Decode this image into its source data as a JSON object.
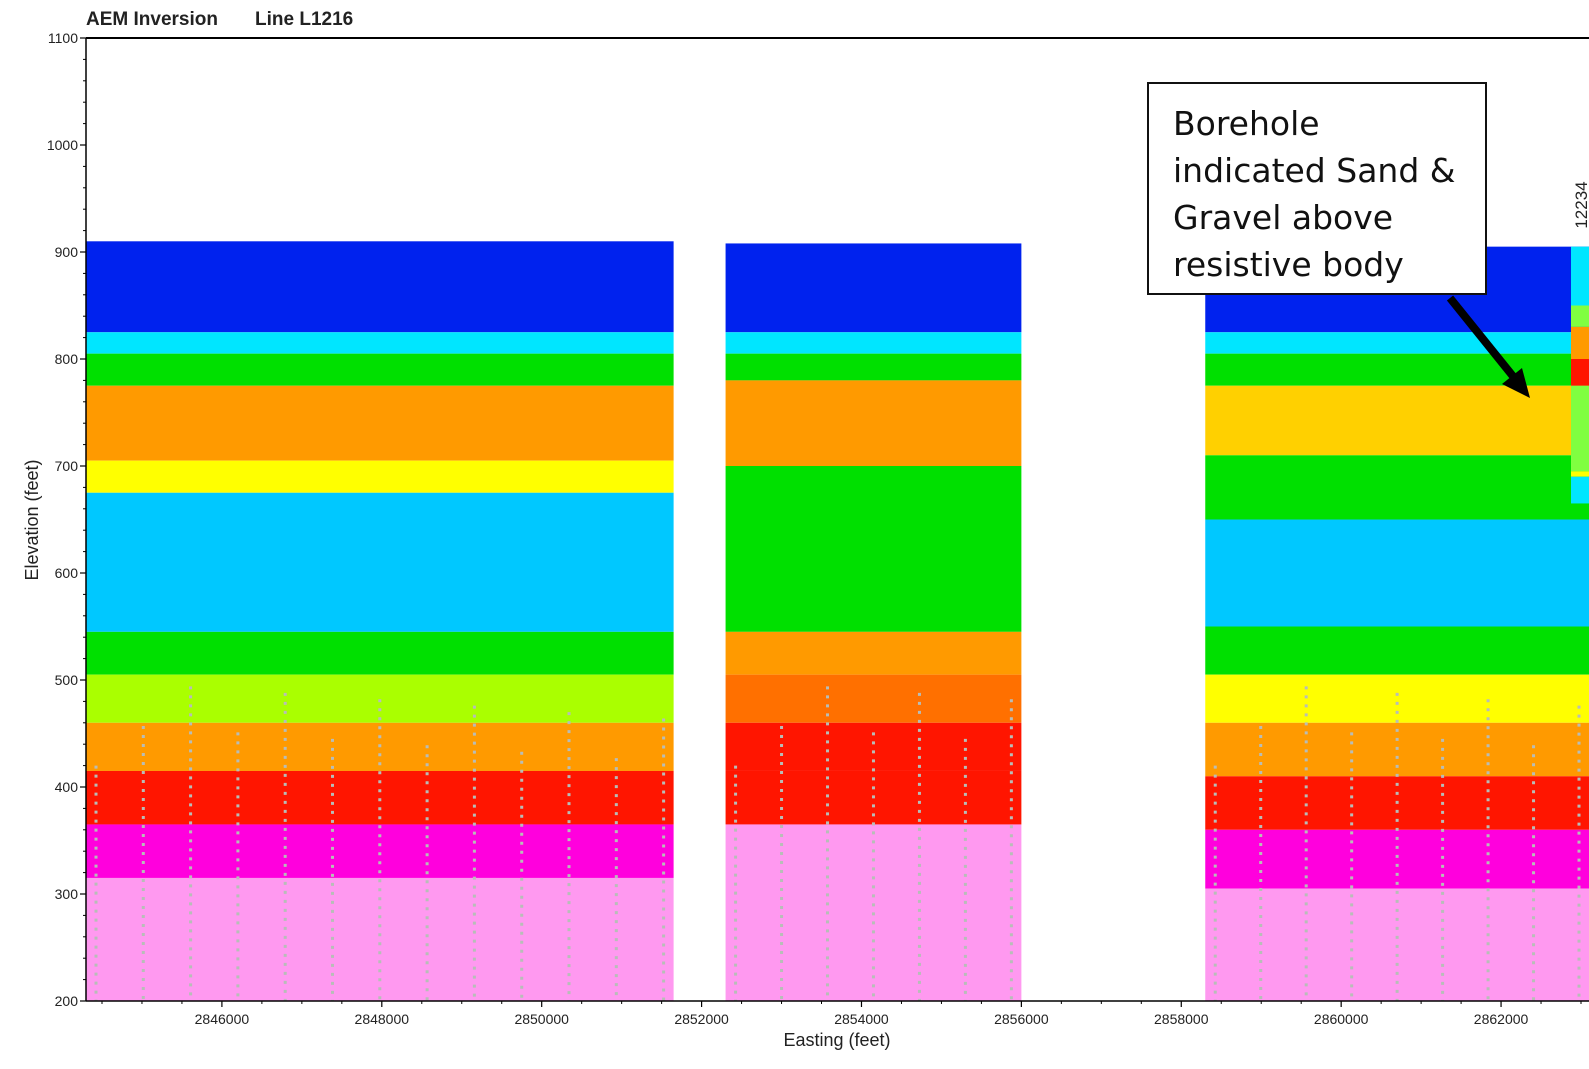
{
  "chart_data": {
    "type": "heatmap",
    "title": "AEM Inversion",
    "subtitle": "Line L1216",
    "xlabel": "Easting (feet)",
    "ylabel": "Elevation (feet)",
    "xlim": [
      2844300,
      2863100
    ],
    "ylim": [
      200,
      1100
    ],
    "x_ticks": [
      2846000,
      2848000,
      2850000,
      2852000,
      2854000,
      2856000,
      2858000,
      2860000,
      2862000
    ],
    "y_ticks": [
      200,
      300,
      400,
      500,
      600,
      700,
      800,
      900,
      1000,
      1100
    ],
    "x_tick_labels": [
      "2846000",
      "2848000",
      "2850000",
      "2852000",
      "2854000",
      "2856000",
      "2858000",
      "2860000",
      "2862000"
    ],
    "y_tick_labels": [
      "200",
      "300",
      "400",
      "500",
      "600",
      "700",
      "800",
      "900",
      "1000",
      "1100"
    ],
    "grid": false,
    "colors": {
      "very_low": "#0022ee",
      "low": "#00e6ff",
      "mid": "#00e000",
      "mid_high": "#ffff00",
      "high": "#ff9a00",
      "very_high": "#ff1500",
      "max": "#ff00dd",
      "saturated": "#ff99f0",
      "depth_of_investigation": "#b8bdb8"
    },
    "segments": [
      {
        "x_start": 2844300,
        "x_end": 2851650,
        "top": 910,
        "layers": [
          {
            "top": 910,
            "bottom": 825,
            "color": "#0022ee"
          },
          {
            "top": 825,
            "bottom": 805,
            "color": "#00e6ff"
          },
          {
            "top": 805,
            "bottom": 775,
            "color": "#00e000"
          },
          {
            "top": 775,
            "bottom": 705,
            "color": "#ff9a00"
          },
          {
            "top": 705,
            "bottom": 675,
            "color": "#ffff00"
          },
          {
            "top": 675,
            "bottom": 545,
            "color": "#00c8ff"
          },
          {
            "top": 545,
            "bottom": 505,
            "color": "#00e000"
          },
          {
            "top": 505,
            "bottom": 460,
            "color": "#aaff00"
          },
          {
            "top": 460,
            "bottom": 415,
            "color": "#ff9a00"
          },
          {
            "top": 415,
            "bottom": 365,
            "color": "#ff1500"
          },
          {
            "top": 365,
            "bottom": 315,
            "color": "#ff00dd"
          },
          {
            "top": 315,
            "bottom": 200,
            "color": "#ff99f0"
          }
        ]
      },
      {
        "x_start": 2852300,
        "x_end": 2856000,
        "top": 908,
        "layers": [
          {
            "top": 908,
            "bottom": 825,
            "color": "#0022ee"
          },
          {
            "top": 825,
            "bottom": 805,
            "color": "#00e6ff"
          },
          {
            "top": 805,
            "bottom": 780,
            "color": "#00e000"
          },
          {
            "top": 780,
            "bottom": 700,
            "color": "#ff9a00"
          },
          {
            "top": 700,
            "bottom": 545,
            "color": "#00e000"
          },
          {
            "top": 545,
            "bottom": 505,
            "color": "#ff9a00"
          },
          {
            "top": 505,
            "bottom": 460,
            "color": "#ff7000"
          },
          {
            "top": 460,
            "bottom": 415,
            "color": "#ff1500"
          },
          {
            "top": 415,
            "bottom": 365,
            "color": "#ff1500"
          },
          {
            "top": 365,
            "bottom": 200,
            "color": "#ff99f0"
          }
        ]
      },
      {
        "x_start": 2858300,
        "x_end": 2863100,
        "top": 905,
        "layers": [
          {
            "top": 905,
            "bottom": 825,
            "color": "#0022ee"
          },
          {
            "top": 825,
            "bottom": 805,
            "color": "#00e6ff"
          },
          {
            "top": 805,
            "bottom": 775,
            "color": "#00e000"
          },
          {
            "top": 775,
            "bottom": 710,
            "color": "#ffd000"
          },
          {
            "top": 710,
            "bottom": 650,
            "color": "#00e000"
          },
          {
            "top": 650,
            "bottom": 550,
            "color": "#00c8ff"
          },
          {
            "top": 550,
            "bottom": 505,
            "color": "#00e000"
          },
          {
            "top": 505,
            "bottom": 460,
            "color": "#ffff00"
          },
          {
            "top": 460,
            "bottom": 410,
            "color": "#ff9a00"
          },
          {
            "top": 410,
            "bottom": 360,
            "color": "#ff1500"
          },
          {
            "top": 360,
            "bottom": 305,
            "color": "#ff00dd"
          },
          {
            "top": 305,
            "bottom": 200,
            "color": "#ff99f0"
          }
        ]
      }
    ],
    "borehole": {
      "label": "12234",
      "x": 2863000,
      "top": 905,
      "bottom": 665,
      "layers": [
        {
          "top": 905,
          "bottom": 850,
          "color": "#00e6ff"
        },
        {
          "top": 850,
          "bottom": 830,
          "color": "#80ff40"
        },
        {
          "top": 830,
          "bottom": 800,
          "color": "#ff9a00"
        },
        {
          "top": 800,
          "bottom": 775,
          "color": "#ff1500"
        },
        {
          "top": 775,
          "bottom": 695,
          "color": "#80ff40"
        },
        {
          "top": 695,
          "bottom": 690,
          "color": "#ffff00"
        },
        {
          "top": 690,
          "bottom": 665,
          "color": "#00e6ff"
        }
      ]
    },
    "annotations": [
      {
        "text": "Borehole indicated Sand & Gravel above resistive body",
        "target_x": 2862600,
        "target_elevation": 740
      }
    ]
  },
  "callout": {
    "lines": [
      "Borehole",
      "indicated Sand &",
      "Gravel above",
      "resistive body"
    ]
  }
}
